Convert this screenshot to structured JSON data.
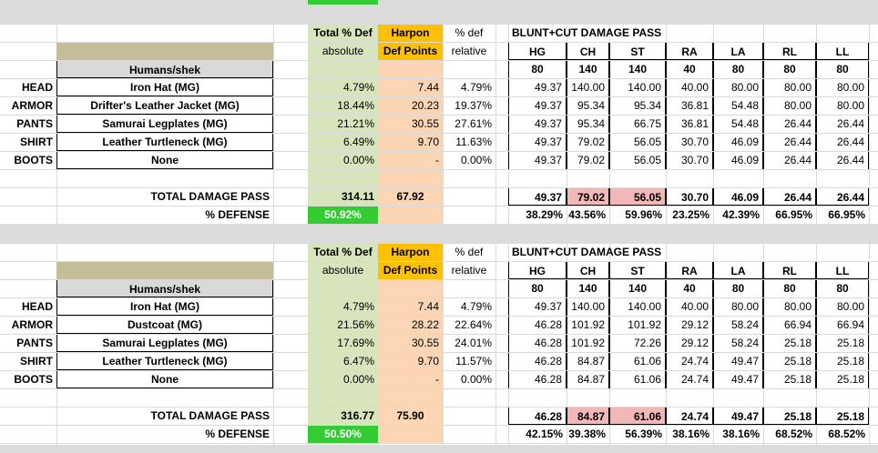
{
  "blocks": [
    {
      "header": {
        "total_def": "Total % Def",
        "harpon": "Harpon",
        "pct_def": "% def",
        "dmg_title": "BLUNT+CUT DAMAGE PASS",
        "absolute": "absolute",
        "def_points": "Def Points",
        "relative": "relative",
        "limbs": [
          "HG",
          "CH",
          "ST",
          "RA",
          "LA",
          "RL",
          "LL"
        ],
        "race": "Humans/shek",
        "limb_hp": [
          "80",
          "140",
          "140",
          "40",
          "80",
          "80",
          "80"
        ]
      },
      "rows": [
        {
          "slot": "HEAD",
          "item": "Iron Hat (MG)",
          "abs": "4.79%",
          "pts": "7.44",
          "rel": "4.79%",
          "vals": [
            "49.37",
            "140.00",
            "140.00",
            "40.00",
            "80.00",
            "80.00",
            "80.00"
          ]
        },
        {
          "slot": "ARMOR",
          "item": "Drifter's Leather Jacket (MG)",
          "abs": "18.44%",
          "pts": "20.23",
          "rel": "19.37%",
          "vals": [
            "49.37",
            "95.34",
            "95.34",
            "36.81",
            "54.48",
            "80.00",
            "80.00"
          ]
        },
        {
          "slot": "PANTS",
          "item": "Samurai Legplates (MG)",
          "abs": "21.21%",
          "pts": "30.55",
          "rel": "27.61%",
          "vals": [
            "49.37",
            "95.34",
            "66.75",
            "36.81",
            "54.48",
            "26.44",
            "26.44"
          ]
        },
        {
          "slot": "SHIRT",
          "item": "Leather Turtleneck (MG)",
          "abs": "6.49%",
          "pts": "9.70",
          "rel": "11.63%",
          "vals": [
            "49.37",
            "79.02",
            "56.05",
            "30.70",
            "46.09",
            "26.44",
            "26.44"
          ]
        },
        {
          "slot": "BOOTS",
          "item": "None",
          "abs": "0.00%",
          "pts": "-",
          "rel": "0.00%",
          "vals": [
            "49.37",
            "79.02",
            "56.05",
            "30.70",
            "46.09",
            "26.44",
            "26.44"
          ]
        }
      ],
      "total": {
        "label": "TOTAL DAMAGE PASS",
        "abs": "314.11",
        "pts": "67.92",
        "vals": [
          "49.37",
          "79.02",
          "56.05",
          "30.70",
          "46.09",
          "26.44",
          "26.44"
        ]
      },
      "defense": {
        "label": "% DEFENSE",
        "value": "50.92%",
        "vals": [
          "38.29%",
          "43.56%",
          "59.96%",
          "23.25%",
          "42.39%",
          "66.95%",
          "66.95%"
        ]
      }
    },
    {
      "header": {
        "total_def": "Total % Def",
        "harpon": "Harpon",
        "pct_def": "% def",
        "dmg_title": "BLUNT+CUT DAMAGE PASS",
        "absolute": "absolute",
        "def_points": "Def Points",
        "relative": "relative",
        "limbs": [
          "HG",
          "CH",
          "ST",
          "RA",
          "LA",
          "RL",
          "LL"
        ],
        "race": "Humans/shek",
        "limb_hp": [
          "80",
          "140",
          "140",
          "40",
          "80",
          "80",
          "80"
        ]
      },
      "rows": [
        {
          "slot": "HEAD",
          "item": "Iron Hat (MG)",
          "abs": "4.79%",
          "pts": "7.44",
          "rel": "4.79%",
          "vals": [
            "49.37",
            "140.00",
            "140.00",
            "40.00",
            "80.00",
            "80.00",
            "80.00"
          ]
        },
        {
          "slot": "ARMOR",
          "item": "Dustcoat (MG)",
          "abs": "21.56%",
          "pts": "28.22",
          "rel": "22.64%",
          "vals": [
            "46.28",
            "101.92",
            "101.92",
            "29.12",
            "58.24",
            "66.94",
            "66.94"
          ]
        },
        {
          "slot": "PANTS",
          "item": "Samurai Legplates (MG)",
          "abs": "17.69%",
          "pts": "30.55",
          "rel": "24.01%",
          "vals": [
            "46.28",
            "101.92",
            "72.26",
            "29.12",
            "58.24",
            "25.18",
            "25.18"
          ]
        },
        {
          "slot": "SHIRT",
          "item": "Leather Turtleneck (MG)",
          "abs": "6.47%",
          "pts": "9.70",
          "rel": "11.57%",
          "vals": [
            "46.28",
            "84.87",
            "61.06",
            "24.74",
            "49.47",
            "25.18",
            "25.18"
          ]
        },
        {
          "slot": "BOOTS",
          "item": "None",
          "abs": "0.00%",
          "pts": "-",
          "rel": "0.00%",
          "vals": [
            "46.28",
            "84.87",
            "61.06",
            "24.74",
            "49.47",
            "25.18",
            "25.18"
          ]
        }
      ],
      "total": {
        "label": "TOTAL DAMAGE PASS",
        "abs": "316.77",
        "pts": "75.90",
        "vals": [
          "46.28",
          "84.87",
          "61.06",
          "24.74",
          "49.47",
          "25.18",
          "25.18"
        ]
      },
      "defense": {
        "label": "% DEFENSE",
        "value": "50.50%",
        "vals": [
          "42.15%",
          "39.38%",
          "56.39%",
          "38.16%",
          "38.16%",
          "68.52%",
          "68.52%"
        ]
      }
    }
  ]
}
